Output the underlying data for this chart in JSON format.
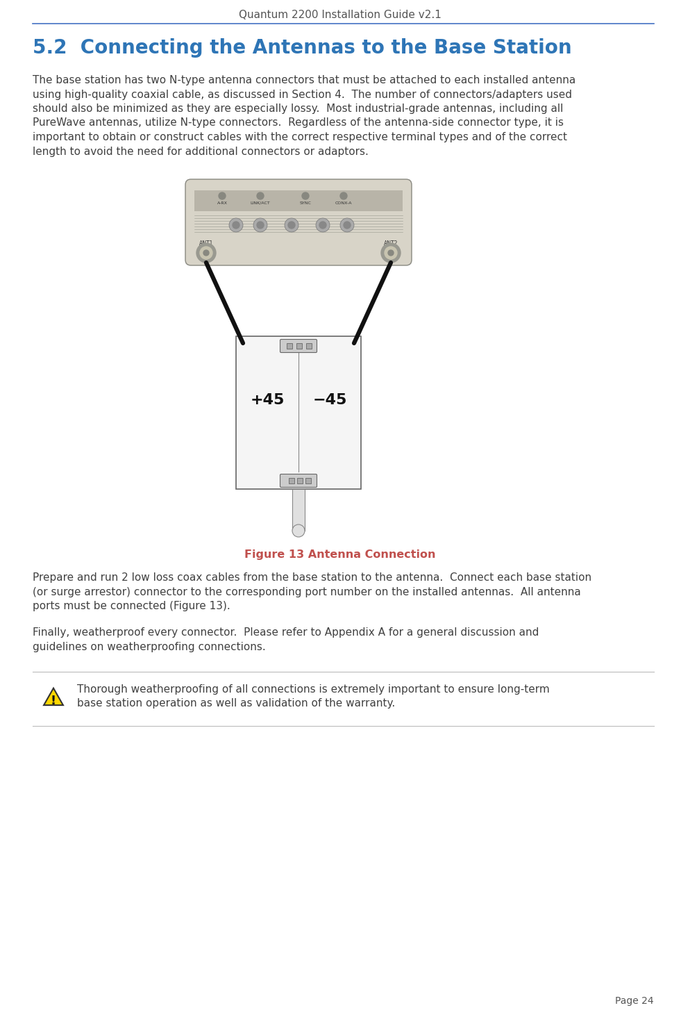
{
  "header_title": "Quantum 2200 Installation Guide v2.1",
  "header_line_color": "#4472C4",
  "section_title": "5.2  Connecting the Antennas to the Base Station",
  "section_title_color": "#2E75B6",
  "body_text_color": "#404040",
  "figure_caption": "Figure 13 Antenna Connection",
  "figure_caption_color": "#C0504D",
  "page_number": "Page 24",
  "bg_color": "#FFFFFF",
  "text_font_size": 11.0,
  "section_font_size": 20,
  "header_font_size": 11,
  "warning_line_color": "#BBBBBB",
  "body1_lines": [
    "The base station has two N-type antenna connectors that must be attached to each installed antenna",
    "using high-quality coaxial cable, as discussed in Section 4.  The number of connectors/adapters used",
    "should also be minimized as they are especially lossy.  Most industrial-grade antennas, including all",
    "PureWave antennas, utilize N-type connectors.  Regardless of the antenna-side connector type, it is",
    "important to obtain or construct cables with the correct respective terminal types and of the correct",
    "length to avoid the need for additional connectors or adaptors."
  ],
  "body2_lines": [
    "Prepare and run 2 low loss coax cables from the base station to the antenna.  Connect each base station",
    "(or surge arrestor) connector to the corresponding port number on the installed antennas.  All antenna",
    "ports must be connected (Figure 13)."
  ],
  "body3_lines": [
    "Finally, weatherproof every connector.  Please refer to Appendix A for a general discussion and",
    "guidelines on weatherproofing connections."
  ],
  "warn_lines": [
    "Thorough weatherproofing of all connections is extremely important to ensure long-term",
    "base station operation as well as validation of the warranty."
  ]
}
